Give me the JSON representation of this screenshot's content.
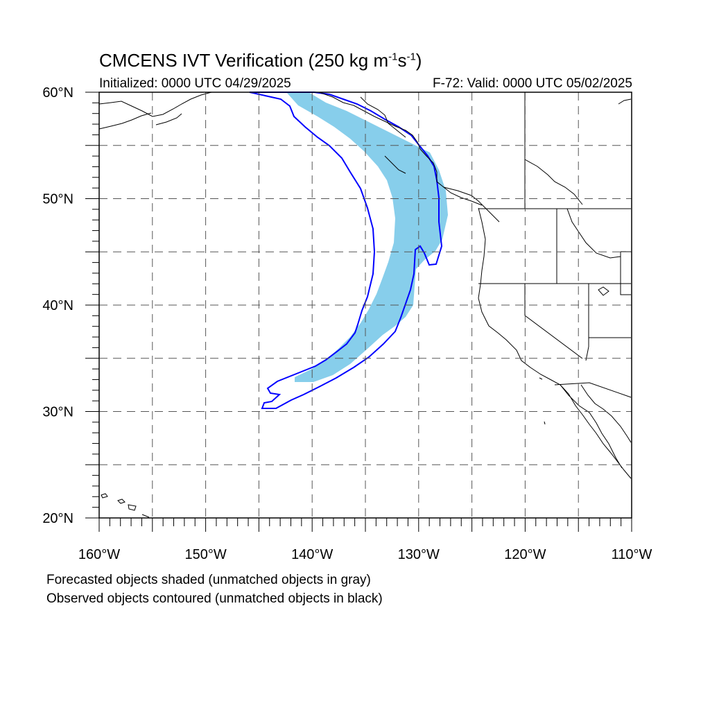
{
  "title": {
    "main_prefix": "CMCENS IVT Verification (250 kg m",
    "exp1": "-1",
    "mid": "s",
    "exp2": "-1",
    "suffix": ")"
  },
  "initialized": "Initialized: 0000 UTC 04/29/2025",
  "valid": "F-72: Valid: 0000 UTC 05/02/2025",
  "map": {
    "lat_labels": [
      "60°N",
      "50°N",
      "40°N",
      "30°N",
      "20°N"
    ],
    "lon_labels": [
      "160°W",
      "150°W",
      "140°W",
      "130°W",
      "120°W",
      "110°W"
    ],
    "lat_range": [
      20,
      60
    ],
    "lon_range": [
      -160,
      -110
    ],
    "forecast_fill_color": "#87ceeb",
    "observed_contour_color": "#0000ff",
    "grid_style": "dashed"
  },
  "legend_notes": [
    "Forecasted objects shaded (unmatched objects in gray)",
    "Observed objects contoured (unmatched objects in black)"
  ]
}
